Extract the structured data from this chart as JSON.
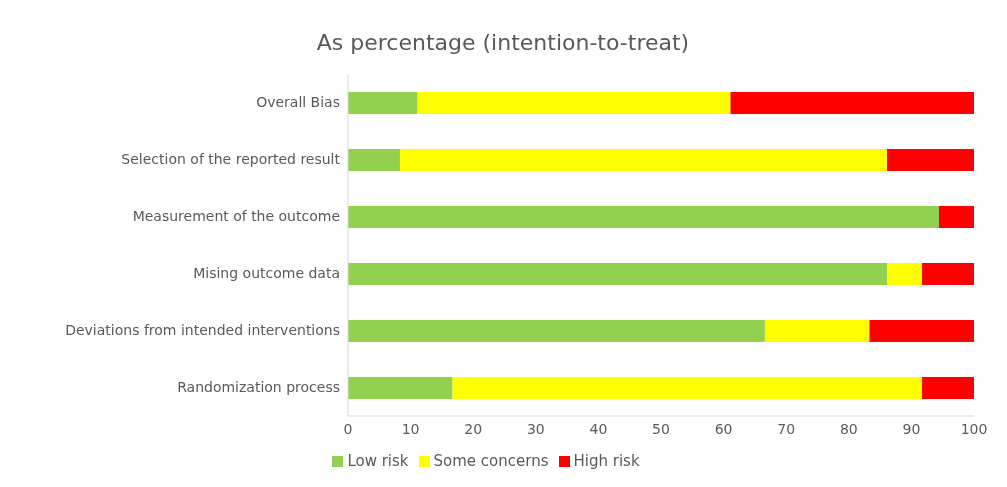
{
  "chart_data": {
    "type": "bar",
    "title": "As percentage (intention-to-treat)",
    "orientation": "horizontal",
    "stacked": true,
    "categories": [
      "Overall Bias",
      "Selection of the reported result",
      "Measurement of the outcome",
      "Mising outcome data",
      "Deviations from intended interventions",
      "Randomization process"
    ],
    "series": [
      {
        "name": "Low risk",
        "color": "#92d050",
        "values": [
          11.1,
          8.3,
          94.4,
          86.1,
          66.6,
          16.7
        ]
      },
      {
        "name": "Some concerns",
        "color": "#ffff00",
        "values": [
          50,
          77.8,
          0,
          5.6,
          16.7,
          75
        ]
      },
      {
        "name": "High risk",
        "color": "#ff0000",
        "values": [
          38.9,
          13.9,
          5.6,
          8.3,
          16.7,
          8.3
        ]
      }
    ],
    "xlim": [
      0,
      100
    ],
    "xticks": [
      0,
      10,
      20,
      30,
      40,
      50,
      60,
      70,
      80,
      90,
      100
    ],
    "grid": false,
    "legend": "bottom"
  }
}
